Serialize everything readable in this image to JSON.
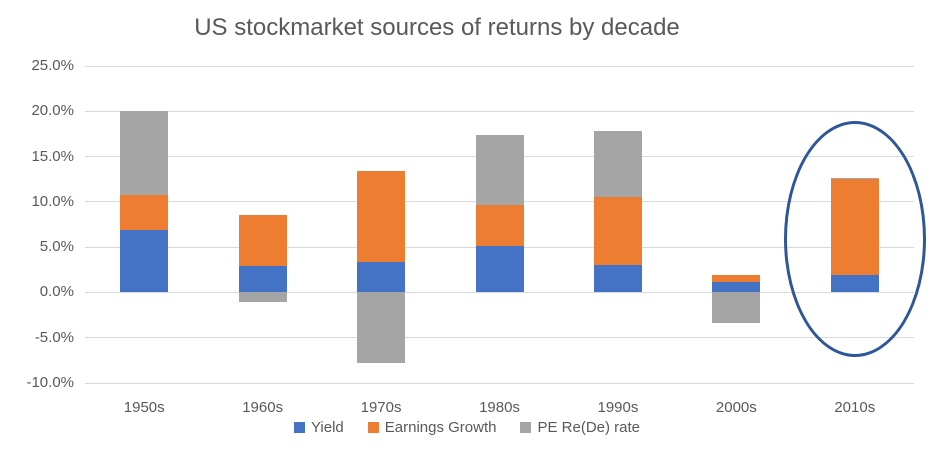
{
  "chart_data": {
    "type": "bar",
    "stacked": true,
    "title": "US stockmarket sources of returns by decade",
    "xlabel": "",
    "ylabel": "",
    "categories": [
      "1950s",
      "1960s",
      "1970s",
      "1980s",
      "1990s",
      "2000s",
      "2010s"
    ],
    "series": [
      {
        "name": "Yield",
        "color": "#4472C4",
        "values": [
          6.9,
          2.9,
          3.4,
          5.1,
          3.0,
          1.1,
          1.9
        ]
      },
      {
        "name": "Earnings Growth",
        "color": "#ED7D31",
        "values": [
          3.9,
          5.6,
          10.0,
          4.5,
          7.5,
          0.8,
          10.6
        ]
      },
      {
        "name": "PE Re(De) rate",
        "color": "#A5A5A5",
        "values": [
          9.2,
          -1.1,
          -7.8,
          7.8,
          7.3,
          -3.4,
          0.1
        ]
      }
    ],
    "ylim": [
      -10,
      25
    ],
    "y_ticks": [
      {
        "value": 25,
        "label": "25.0%"
      },
      {
        "value": 20,
        "label": "20.0%"
      },
      {
        "value": 15,
        "label": "15.0%"
      },
      {
        "value": 10,
        "label": "10.0%"
      },
      {
        "value": 5,
        "label": "5.0%"
      },
      {
        "value": 0,
        "label": "0.0%"
      },
      {
        "value": -5,
        "label": "-5.0%"
      },
      {
        "value": -10,
        "label": "-10.0%"
      }
    ],
    "grid": true,
    "legend_position": "bottom",
    "annotation": {
      "type": "ellipse",
      "target_category": "2010s",
      "color": "#2E5797"
    }
  },
  "colors": {
    "gridline": "#D9D9D9",
    "text": "#595959",
    "background": "#FFFFFF"
  }
}
